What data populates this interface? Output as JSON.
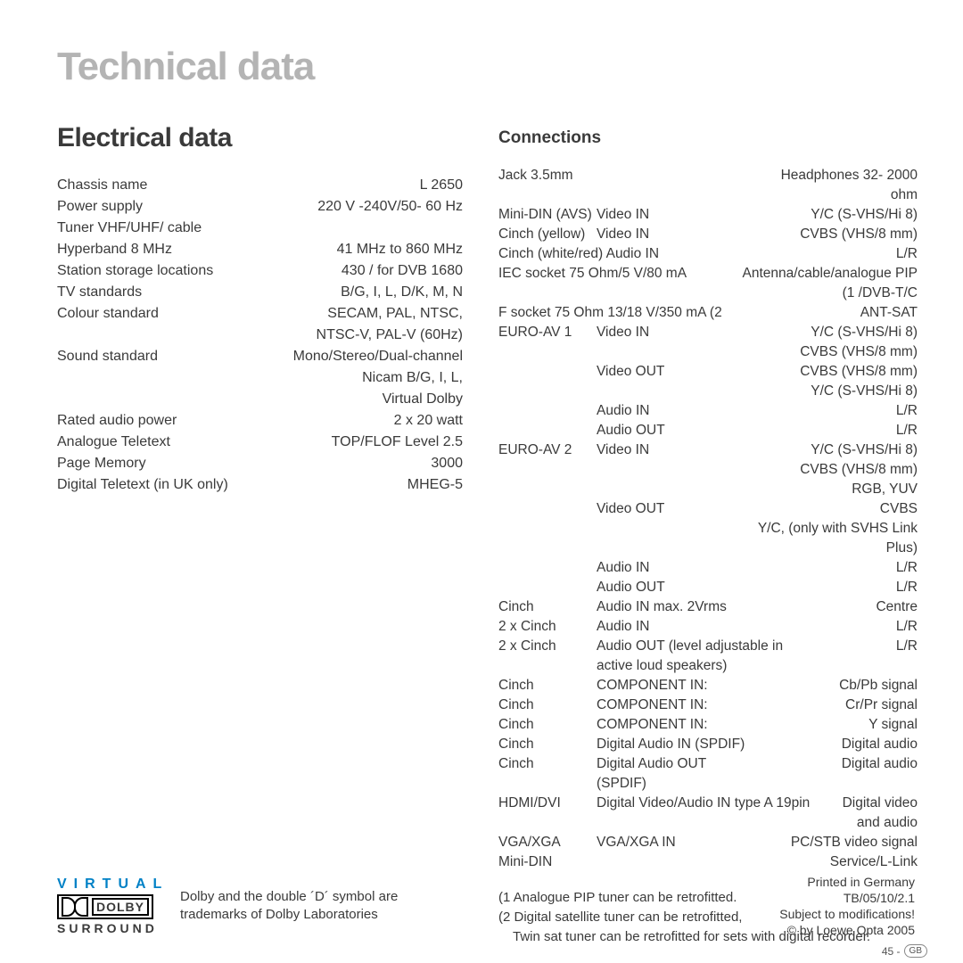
{
  "title": "Technical data",
  "left": {
    "heading": "Electrical data",
    "rows": [
      {
        "l": "Chassis name",
        "r": "L 2650"
      },
      {
        "l": "Power supply",
        "r": "220 V -240V/50- 60 Hz"
      },
      {
        "l": "Tuner VHF/UHF/ cable",
        "r": ""
      },
      {
        "l": "Hyperband 8 MHz",
        "r": "41 MHz to 860 MHz"
      },
      {
        "l": "Station storage locations",
        "r": "430 / for DVB 1680"
      },
      {
        "l": "TV standards",
        "r": "B/G, I, L, D/K, M, N"
      },
      {
        "l": "Colour standard",
        "r": "SECAM, PAL, NTSC,"
      },
      {
        "l": "",
        "r": "NTSC-V, PAL-V (60Hz)"
      },
      {
        "l": "Sound standard",
        "r": "Mono/Stereo/Dual-channel"
      },
      {
        "l": "",
        "r": "Nicam B/G, I, L,"
      },
      {
        "l": "",
        "r": "Virtual Dolby"
      },
      {
        "l": "Rated audio power",
        "r": "2 x 20 watt"
      },
      {
        "l": "Analogue Teletext",
        "r": "TOP/FLOF Level 2.5"
      },
      {
        "l": "Page Memory",
        "r": "3000"
      },
      {
        "l": "Digital Teletext (in UK only)",
        "r": "MHEG-5"
      }
    ]
  },
  "right": {
    "heading": "Connections",
    "rows": [
      {
        "c1": "Jack 3.5mm",
        "c2": "",
        "c3": "Headphones 32- 2000 ohm"
      },
      {
        "c1": "Mini-DIN (AVS)",
        "c2": "Video IN",
        "c3": "Y/C (S-VHS/Hi 8)"
      },
      {
        "c1": "Cinch (yellow)",
        "c2": "Video IN",
        "c3": "CVBS (VHS/8 mm)"
      },
      {
        "c1w": "Cinch (white/red) Audio IN",
        "c3": "L/R"
      },
      {
        "c1w": "IEC socket 75 Ohm/5 V/80 mA",
        "c3": "Antenna/cable/analogue PIP (1 /DVB-T/C"
      },
      {
        "c1w": "F socket 75 Ohm 13/18 V/350 mA (2",
        "c3": "ANT-SAT"
      },
      {
        "c1": "EURO-AV 1",
        "c2": "Video IN",
        "c3": "Y/C (S-VHS/Hi 8)"
      },
      {
        "c1": "",
        "c2": "",
        "c3": "CVBS (VHS/8 mm)"
      },
      {
        "c1": "",
        "c2": "Video OUT",
        "c3": "CVBS (VHS/8 mm)"
      },
      {
        "c1": "",
        "c2": "",
        "c3": "Y/C (S-VHS/Hi 8)"
      },
      {
        "c1": "",
        "c2": "Audio IN",
        "c3": "L/R"
      },
      {
        "c1": "",
        "c2": "Audio OUT",
        "c3": "L/R"
      },
      {
        "c1": "EURO-AV 2",
        "c2": "Video IN",
        "c3": "Y/C (S-VHS/Hi 8)"
      },
      {
        "c1": "",
        "c2": "",
        "c3": "CVBS (VHS/8 mm)"
      },
      {
        "c1": "",
        "c2": "",
        "c3": "RGB, YUV"
      },
      {
        "c1": "",
        "c2": "Video OUT",
        "c3": "CVBS"
      },
      {
        "c1": "",
        "c2": "",
        "c3": "Y/C, (only with SVHS Link Plus)"
      },
      {
        "c1": "",
        "c2": "Audio IN",
        "c3": "L/R"
      },
      {
        "c1": "",
        "c2": "Audio OUT",
        "c3": "L/R"
      },
      {
        "c1": "Cinch",
        "c2": "Audio IN max. 2Vrms",
        "c3": "Centre"
      },
      {
        "c1": "2 x Cinch",
        "c2": "Audio IN",
        "c3": "L/R"
      },
      {
        "c1": "2 x Cinch",
        "c2w": "Audio OUT (level adjustable in active loud speakers)",
        "c3": "L/R"
      },
      {
        "c1": "Cinch",
        "c2": "COMPONENT IN:",
        "c3": "Cb/Pb signal"
      },
      {
        "c1": "Cinch",
        "c2": "COMPONENT IN:",
        "c3": "Cr/Pr signal"
      },
      {
        "c1": "Cinch",
        "c2": "COMPONENT IN:",
        "c3": "Y signal"
      },
      {
        "c1": "Cinch",
        "c2": "Digital Audio IN (SPDIF)",
        "c3": "Digital audio"
      },
      {
        "c1": "Cinch",
        "c2": "Digital Audio OUT (SPDIF)",
        "c3": "Digital audio"
      },
      {
        "c1": "HDMI/DVI",
        "c2w": "Digital Video/Audio IN type A 19pin",
        "c3": "Digital video and audio"
      },
      {
        "c1": "VGA/XGA",
        "c2": "VGA/XGA IN",
        "c3": "PC/STB video signal"
      },
      {
        "c1": "Mini-DIN",
        "c2": "",
        "c3": "Service/L-Link"
      }
    ],
    "notes": [
      "(1 Analogue PIP tuner can be retrofitted.",
      "(2 Digital satellite tuner can be retrofitted,",
      "Twin sat tuner can be retrofitted for sets with digital recorder."
    ]
  },
  "footer": {
    "dolby": {
      "virtual": "VIRTUAL",
      "dolby": "DOLBY",
      "surround": "SURROUND",
      "txt": "Dolby and the double ´D´ symbol are trademarks of Dolby Laboratories"
    },
    "imprint": [
      "Printed in Germany",
      "TB/05/10/2.1",
      "Subject to modifications!",
      "© by Loewe Opta 2005"
    ],
    "page_num": "45 -",
    "page_region": "GB"
  }
}
